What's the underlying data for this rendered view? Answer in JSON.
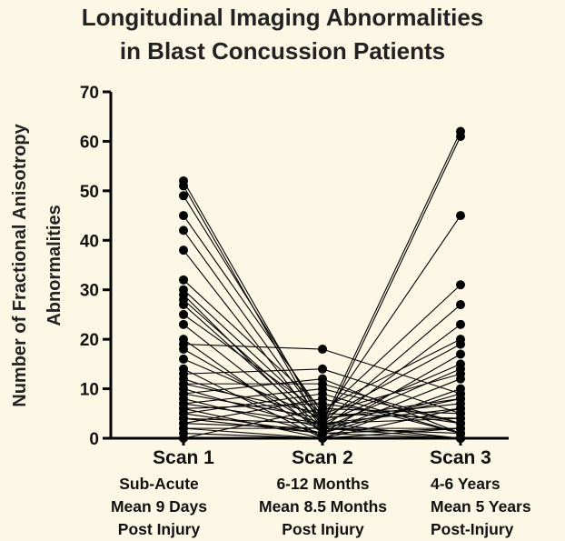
{
  "title": [
    "Longitudinal Imaging Abnormalities",
    "in Blast Concussion Patients"
  ],
  "colors": {
    "background": "#fdf8e6",
    "ink": "#000000"
  },
  "chart_data": {
    "type": "scatter",
    "subtype": "paired-dot-line",
    "title": "Longitudinal Imaging Abnormalities in Blast Concussion Patients",
    "ylabel": [
      "Number of Fractional Anisotropy",
      "Abnormalities"
    ],
    "ylim": [
      0,
      70
    ],
    "yticks": [
      0,
      10,
      20,
      30,
      40,
      50,
      60,
      70
    ],
    "grid": false,
    "categories": [
      "Scan 1",
      "Scan 2",
      "Scan 3"
    ],
    "category_sublabels": [
      [
        "Sub-Acute",
        "Mean 9  Days",
        "Post Injury"
      ],
      [
        "6-12 Months",
        "Mean 8.5 Months",
        "Post Injury"
      ],
      [
        "4-6 Years",
        "Mean 5 Years",
        "Post-Injury"
      ]
    ],
    "patients": [
      [
        52,
        3,
        62
      ],
      [
        51,
        2,
        61
      ],
      [
        49,
        4,
        45
      ],
      [
        45,
        5,
        31
      ],
      [
        42,
        3,
        27
      ],
      [
        38,
        2,
        23
      ],
      [
        32,
        6,
        20
      ],
      [
        30,
        4,
        19
      ],
      [
        29,
        1,
        17
      ],
      [
        28,
        3,
        15
      ],
      [
        27,
        2,
        14
      ],
      [
        25,
        5,
        13
      ],
      [
        23,
        1,
        12
      ],
      [
        20,
        0,
        10
      ],
      [
        19,
        18,
        9
      ],
      [
        18,
        2,
        8
      ],
      [
        16,
        4,
        7
      ],
      [
        14,
        0,
        6
      ],
      [
        13,
        14,
        5
      ],
      [
        12,
        3,
        4
      ],
      [
        11,
        11,
        3
      ],
      [
        10,
        2,
        2
      ],
      [
        9,
        12,
        1
      ],
      [
        8,
        1,
        0
      ],
      [
        7,
        10,
        3
      ],
      [
        6,
        0,
        2
      ],
      [
        5,
        9,
        1
      ],
      [
        4,
        3,
        0
      ],
      [
        3,
        8,
        1
      ],
      [
        2,
        2,
        0
      ],
      [
        1,
        0,
        0
      ],
      [
        0,
        6,
        5
      ],
      [
        9,
        4,
        8
      ],
      [
        7,
        3,
        6
      ],
      [
        5,
        1,
        2
      ],
      [
        3,
        2,
        1
      ],
      [
        2,
        0,
        0
      ],
      [
        11,
        5,
        4
      ],
      [
        6,
        7,
        3
      ],
      [
        4,
        1,
        9
      ]
    ]
  }
}
